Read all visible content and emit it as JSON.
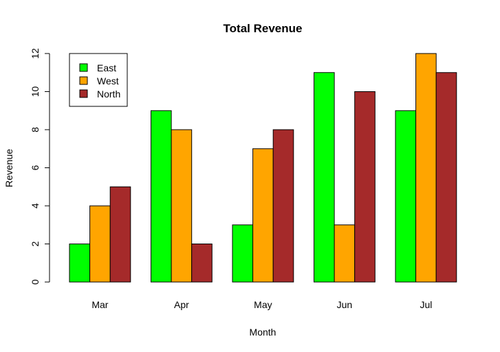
{
  "chart_data": {
    "type": "bar",
    "title": "Total Revenue",
    "xlabel": "Month",
    "ylabel": "Revenue",
    "categories": [
      "Mar",
      "Apr",
      "May",
      "Jun",
      "Jul"
    ],
    "series": [
      {
        "name": "East",
        "color": "#00ff00",
        "values": [
          2,
          9,
          3,
          11,
          9
        ]
      },
      {
        "name": "West",
        "color": "#ffa500",
        "values": [
          4,
          8,
          7,
          3,
          12
        ]
      },
      {
        "name": "North",
        "color": "#a52a2a",
        "values": [
          5,
          2,
          8,
          10,
          11
        ]
      }
    ],
    "ylim": [
      0,
      12
    ],
    "yticks": [
      "0",
      "2",
      "4",
      "6",
      "8",
      "10",
      "12"
    ],
    "grid": false,
    "legend_position": "top-left"
  }
}
